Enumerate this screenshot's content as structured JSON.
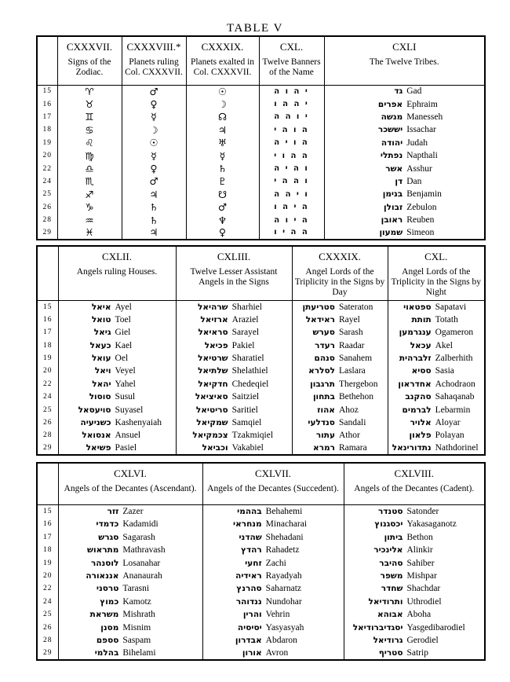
{
  "page_title": "TABLE V",
  "tables": [
    {
      "columns": [
        {
          "roman": "CXXXVII.",
          "desc": "Signs of the Zodiac."
        },
        {
          "roman": "CXXXVIII.*",
          "desc": "Planets ruling Col. CXXXVII."
        },
        {
          "roman": "CXXXIX.",
          "desc": "Planets exalted in Col. CXXXVII."
        },
        {
          "roman": "CXL.",
          "desc": "Twelve Banners of the Name"
        },
        {
          "roman": "CXLI",
          "desc": "The Twelve Tribes."
        }
      ],
      "rows": [
        [
          "15",
          "♈",
          "♂",
          "☉",
          "י ה ו ה",
          [
            "גד",
            "Gad"
          ]
        ],
        [
          "16",
          "♉",
          "♀",
          "☽",
          "י ה ה ו",
          [
            "אפרים",
            "Ephraim"
          ]
        ],
        [
          "17",
          "♊",
          "☿",
          "☊",
          "י ו ה ה",
          [
            "מנשה",
            "Manesseh"
          ]
        ],
        [
          "18",
          "♋",
          "☽",
          "♃",
          "ה ו ה י",
          [
            "יששכר",
            "Issachar"
          ]
        ],
        [
          "19",
          "♌",
          "☉",
          "♅",
          "ה ו י ה",
          [
            "יהודה",
            "Judah"
          ]
        ],
        [
          "20",
          "♍",
          "☿",
          "☿",
          "ה ה ו י",
          [
            "נפתלי",
            "Napthali"
          ]
        ],
        [
          "22",
          "♎",
          "♀",
          "♄",
          "ו ה י ה",
          [
            "אשר",
            "Asshur"
          ]
        ],
        [
          "24",
          "♏",
          "♂",
          "♇",
          "ו ה ה י",
          [
            "דן",
            "Dan"
          ]
        ],
        [
          "25",
          "♐",
          "♃",
          "☋",
          "ו י ה ה",
          [
            "בנימן",
            "Benjamin"
          ]
        ],
        [
          "26",
          "♑",
          "♄",
          "♂",
          "ה י ה ו",
          [
            "זבולן",
            "Zebulon"
          ]
        ],
        [
          "28",
          "♒",
          "♄",
          "♆",
          "ה י ו ה",
          [
            "ראובן",
            "Reuben"
          ]
        ],
        [
          "29",
          "♓",
          "♃",
          "♀",
          "ה ה י ו",
          [
            "שמעון",
            "Simeon"
          ]
        ]
      ]
    },
    {
      "columns": [
        {
          "roman": "CXLII.",
          "desc": "Angels ruling Houses."
        },
        {
          "roman": "CXLIII.",
          "desc": "Twelve Lesser Assistant Angels in the Signs"
        },
        {
          "roman": "CXXXIX.",
          "desc": "Angel Lords of the Triplicity in the Signs by Day"
        },
        {
          "roman": "CXL.",
          "desc": "Angel Lords of the Triplicity in the Signs by Night"
        }
      ],
      "rows": [
        [
          "15",
          [
            "איאל",
            "Ayel"
          ],
          [
            "שרהיאל",
            "Sharhiel"
          ],
          [
            "סטריעתן",
            "Sateraton"
          ],
          [
            "ספטאוי",
            "Sapatavi"
          ]
        ],
        [
          "16",
          [
            "טואל",
            "Toel"
          ],
          [
            "ארזיאל",
            "Araziel"
          ],
          [
            "ראידאל",
            "Rayel"
          ],
          [
            "תותת",
            "Totath"
          ]
        ],
        [
          "17",
          [
            "גיאל",
            "Giel"
          ],
          [
            "סראיאל",
            "Sarayel"
          ],
          [
            "סערש",
            "Sarash"
          ],
          [
            "ענגרמען",
            "Ogameron"
          ]
        ],
        [
          "18",
          [
            "כעאל",
            "Kael"
          ],
          [
            "פכיאל",
            "Pakiel"
          ],
          [
            "רעדר",
            "Raadar"
          ],
          [
            "עכאל",
            "Akel"
          ]
        ],
        [
          "19",
          [
            "עואל",
            "Oel"
          ],
          [
            "שרטיאל",
            "Sharatiel"
          ],
          [
            "סנהם",
            "Sanahem"
          ],
          [
            "זלברהית",
            "Zalberhith"
          ]
        ],
        [
          "20",
          [
            "ויאל",
            "Veyel"
          ],
          [
            "שלתיאל",
            "Shelathiel"
          ],
          [
            "לסלרא",
            "Laslara"
          ],
          [
            "ססיא",
            "Sasia"
          ]
        ],
        [
          "22",
          [
            "יהאל",
            "Yahel"
          ],
          [
            "חדקיאל",
            "Chedeqiel"
          ],
          [
            "תרגבון",
            "Thergebon"
          ],
          [
            "אחדראון",
            "Achodraon"
          ]
        ],
        [
          "24",
          [
            "סוסול",
            "Susul"
          ],
          [
            "סאיציאל",
            "Saitziel"
          ],
          [
            "בתחון",
            "Bethehon"
          ],
          [
            "סהקנב",
            "Sahaqanab"
          ]
        ],
        [
          "25",
          [
            "סויעסאל",
            "Suyasel"
          ],
          [
            "סריטיאל",
            "Saritiel"
          ],
          [
            "אהוז",
            "Ahoz"
          ],
          [
            "לברמים",
            "Lebarmin"
          ]
        ],
        [
          "26",
          [
            "כשניעיה",
            "Kashenyaiah"
          ],
          [
            "שמקיאל",
            "Samqiel"
          ],
          [
            "סנדלעי",
            "Sandali"
          ],
          [
            "אלויר",
            "Aloyar"
          ]
        ],
        [
          "28",
          [
            "אנסואל",
            "Ansuel"
          ],
          [
            "צכמקיאל",
            "Tzakmiqiel"
          ],
          [
            "עתור",
            "Athor"
          ],
          [
            "פלאון",
            "Polayan"
          ]
        ],
        [
          "29",
          [
            "פשיאל",
            "Pasiel"
          ],
          [
            "וכביאל",
            "Vakabiel"
          ],
          [
            "רמרא",
            "Ramara"
          ],
          [
            "נתדורינאל",
            "Nathdorinel"
          ]
        ]
      ]
    },
    {
      "columns": [
        {
          "roman": "CXLVI.",
          "desc": "Angels of the Decantes (Ascendant)."
        },
        {
          "roman": "CXLVII.",
          "desc": "Angels of the Decantes (Succedent)."
        },
        {
          "roman": "CXLVIII.",
          "desc": "Angels of the Decantes (Cadent)."
        }
      ],
      "rows": [
        [
          "15",
          [
            "זזר",
            "Zazer"
          ],
          [
            "בההמי",
            "Behahemi"
          ],
          [
            "סטנדר",
            "Satonder"
          ]
        ],
        [
          "16",
          [
            "כדמדי",
            "Kadamidi"
          ],
          [
            "מנחראי",
            "Minacharai"
          ],
          [
            "יכסגנוץ",
            "Yakasaganotz"
          ]
        ],
        [
          "17",
          [
            "סגרש",
            "Sagarash"
          ],
          [
            "שהדני",
            "Shehadani"
          ],
          [
            "ביתון",
            "Bethon"
          ]
        ],
        [
          "18",
          [
            "מתראוש",
            "Mathravash"
          ],
          [
            "רהדץ",
            "Rahadetz"
          ],
          [
            "אלינכיר",
            "Alinkir"
          ]
        ],
        [
          "19",
          [
            "לוסנהר",
            "Losanahar"
          ],
          [
            "זחעי",
            "Zachi"
          ],
          [
            "סהיבר",
            "Sahiber"
          ]
        ],
        [
          "20",
          [
            "אננאורה",
            "Ananaurah"
          ],
          [
            "ראידיה",
            "Rayadyah"
          ],
          [
            "משפר",
            "Mishpar"
          ]
        ],
        [
          "22",
          [
            "טרסני",
            "Tarasni"
          ],
          [
            "סהרנץ",
            "Saharnatz"
          ],
          [
            "שחדר",
            "Shachdar"
          ]
        ],
        [
          "24",
          [
            "כמוץ",
            "Kamotz"
          ],
          [
            "ננדוהר",
            "Nundohar"
          ],
          [
            "ותרודיאל",
            "Uthrodiel"
          ]
        ],
        [
          "25",
          [
            "משראת",
            "Mishrath"
          ],
          [
            "והרין",
            "Vehrin"
          ],
          [
            "אבוהא",
            "Aboha"
          ]
        ],
        [
          "26",
          [
            "מסנן",
            "Misnim"
          ],
          [
            "יסיסיה",
            "Yasyasyah"
          ],
          [
            "יסגדיברודיאל",
            "Yasgedibarodiel"
          ]
        ],
        [
          "28",
          [
            "סספם",
            "Saspam"
          ],
          [
            "אבדרון",
            "Abdaron"
          ],
          [
            "גרודיאל",
            "Gerodiel"
          ]
        ],
        [
          "29",
          [
            "בהלמי",
            "Bihelami"
          ],
          [
            "אורון",
            "Avron"
          ],
          [
            "סטריף",
            "Satrip"
          ]
        ]
      ]
    }
  ]
}
